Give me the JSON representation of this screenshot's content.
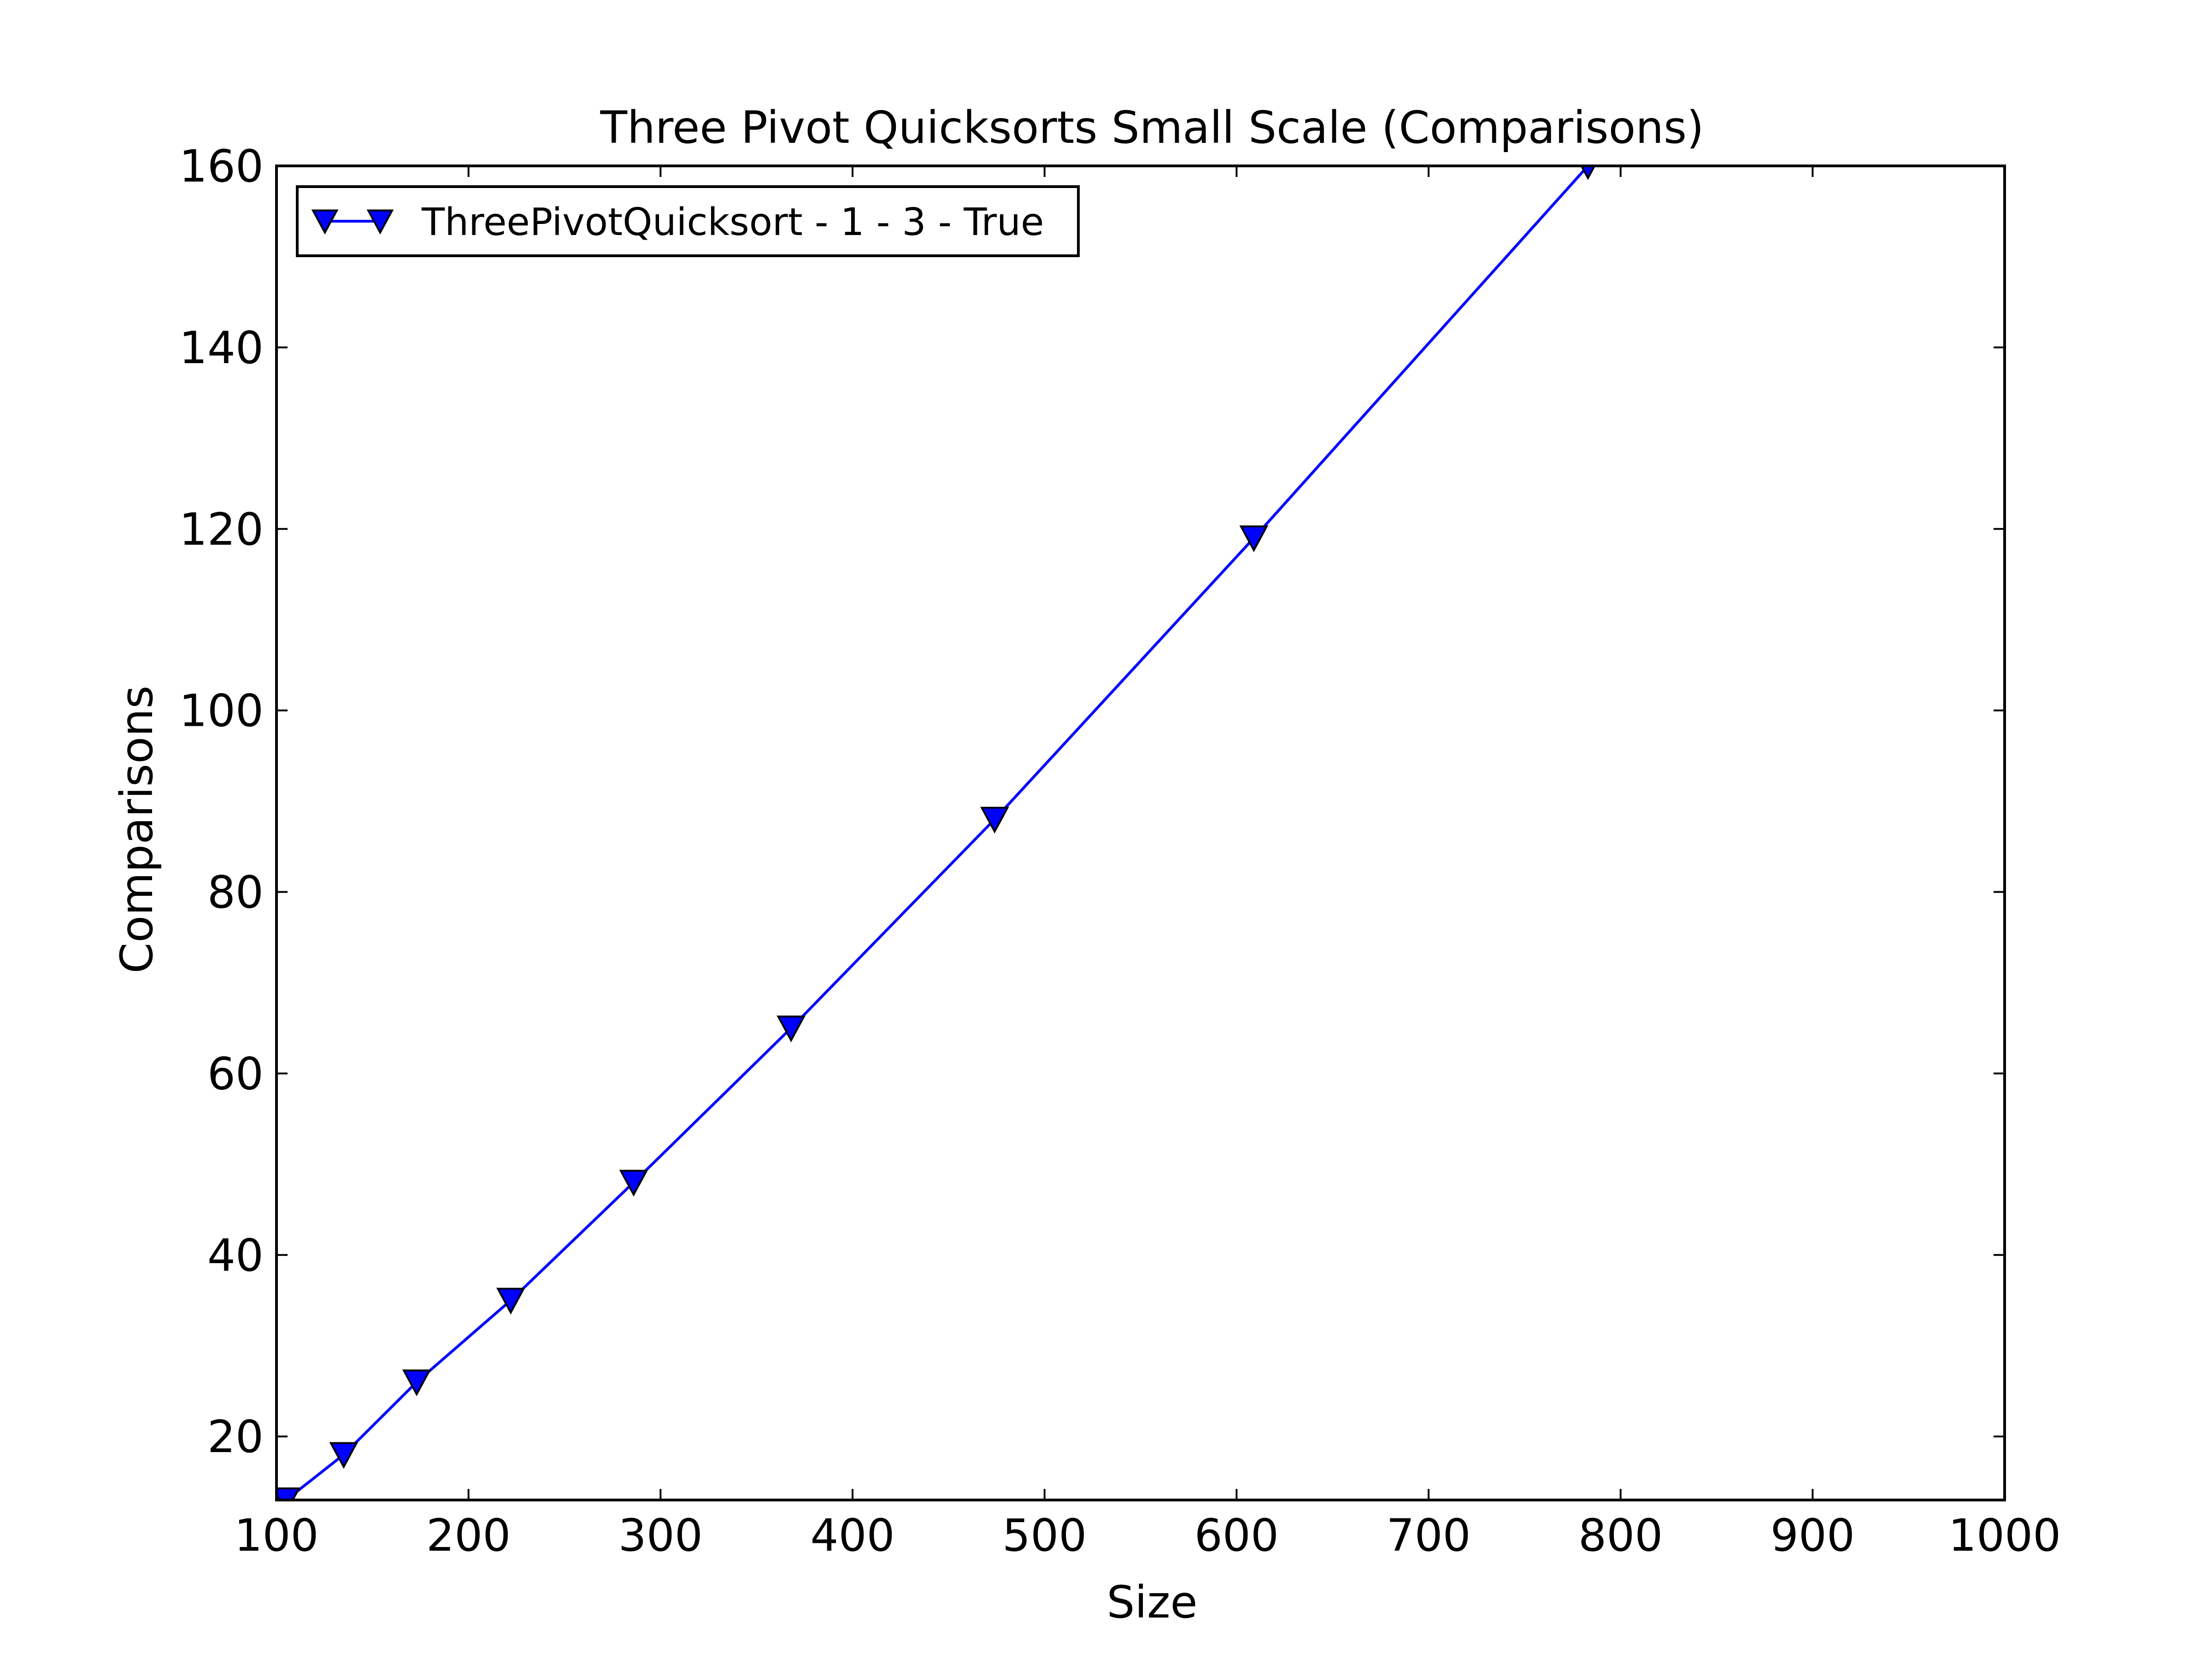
{
  "chart_data": {
    "type": "line",
    "title": "Three Pivot Quicksorts Small Scale (Comparisons)",
    "xlabel": "Size",
    "ylabel": "Comparisons",
    "xlim": [
      100,
      1000
    ],
    "ylim": [
      13,
      160
    ],
    "xticks": [
      100,
      200,
      300,
      400,
      500,
      600,
      700,
      800,
      900,
      1000
    ],
    "yticks": [
      20,
      40,
      60,
      80,
      100,
      120,
      140,
      160
    ],
    "grid": false,
    "legend_position": "top-left",
    "series": [
      {
        "name": "ThreePivotQuicksort - 1 - 3 - True",
        "color": "#0000ff",
        "marker": "triangle-down",
        "x": [
          105,
          135,
          173,
          222,
          286,
          368,
          474,
          609,
          783
        ],
        "y": [
          13,
          18,
          26,
          35,
          48,
          65,
          88,
          119,
          160
        ]
      }
    ]
  }
}
